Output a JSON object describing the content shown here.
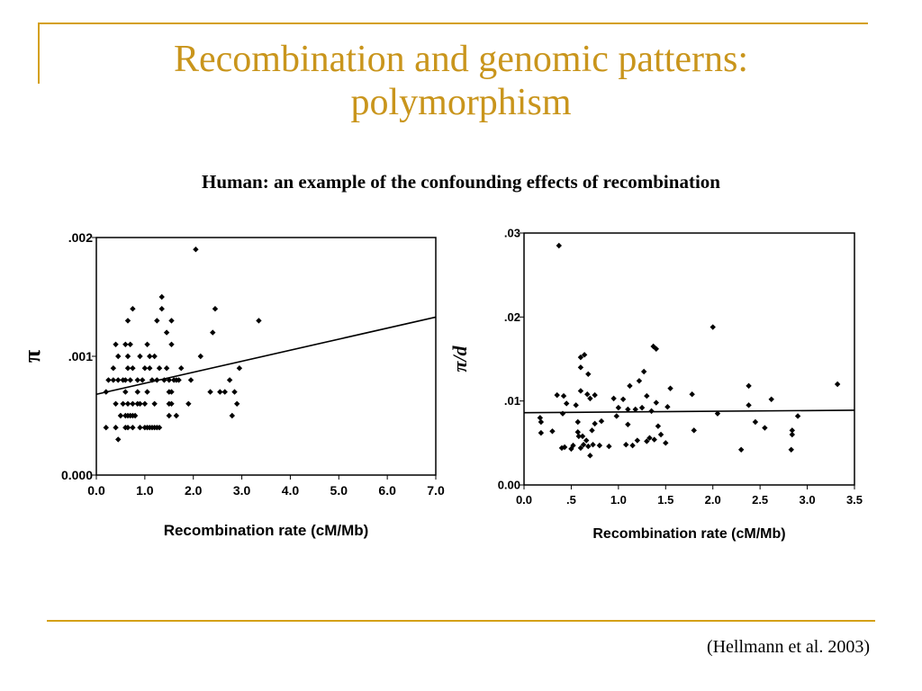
{
  "slide": {
    "title_line1": "Recombination and genomic patterns:",
    "title_line2": "polymorphism",
    "subtitle": "Human: an example of the confounding effects of recombination",
    "citation": "(Hellmann et al. 2003)",
    "accent_color": "#c9951c"
  },
  "chart_data": [
    {
      "type": "scatter",
      "xlabel": "Recombination rate (cM/Mb)",
      "ylabel": "π",
      "xlim": [
        0,
        7
      ],
      "ylim": [
        0,
        0.002
      ],
      "x_ticks": [
        "0.0",
        "1.0",
        "2.0",
        "3.0",
        "4.0",
        "5.0",
        "6.0",
        "7.0"
      ],
      "y_ticks": [
        {
          "value": 0.002,
          "label": ".002"
        },
        {
          "value": 0.001,
          "label": ".001"
        },
        {
          "value": 0,
          "label": "0.000"
        }
      ],
      "trend_line": [
        [
          0,
          0.00068
        ],
        [
          7,
          0.00133
        ]
      ],
      "points": [
        [
          0.2,
          0.0004
        ],
        [
          0.2,
          0.0007
        ],
        [
          0.25,
          0.0008
        ],
        [
          0.35,
          0.0008
        ],
        [
          0.35,
          0.0009
        ],
        [
          0.4,
          0.0004
        ],
        [
          0.4,
          0.0006
        ],
        [
          0.4,
          0.0011
        ],
        [
          0.45,
          0.0003
        ],
        [
          0.45,
          0.0008
        ],
        [
          0.45,
          0.001
        ],
        [
          0.5,
          0.0005
        ],
        [
          0.55,
          0.0006
        ],
        [
          0.55,
          0.0008
        ],
        [
          0.6,
          0.0004
        ],
        [
          0.6,
          0.0005
        ],
        [
          0.6,
          0.0007
        ],
        [
          0.6,
          0.0008
        ],
        [
          0.6,
          0.0011
        ],
        [
          0.65,
          0.0004
        ],
        [
          0.65,
          0.0005
        ],
        [
          0.65,
          0.0006
        ],
        [
          0.65,
          0.0009
        ],
        [
          0.65,
          0.001
        ],
        [
          0.65,
          0.0013
        ],
        [
          0.7,
          0.0005
        ],
        [
          0.7,
          0.0008
        ],
        [
          0.7,
          0.0011
        ],
        [
          0.75,
          0.0004
        ],
        [
          0.75,
          0.0005
        ],
        [
          0.75,
          0.0006
        ],
        [
          0.75,
          0.0009
        ],
        [
          0.75,
          0.0014
        ],
        [
          0.8,
          0.0005
        ],
        [
          0.85,
          0.0006
        ],
        [
          0.85,
          0.0007
        ],
        [
          0.85,
          0.0008
        ],
        [
          0.9,
          0.0004
        ],
        [
          0.9,
          0.0006
        ],
        [
          0.9,
          0.001
        ],
        [
          0.95,
          0.0008
        ],
        [
          1.0,
          0.0004
        ],
        [
          1.0,
          0.0006
        ],
        [
          1.0,
          0.0009
        ],
        [
          1.05,
          0.0004
        ],
        [
          1.05,
          0.0007
        ],
        [
          1.05,
          0.0011
        ],
        [
          1.1,
          0.0004
        ],
        [
          1.1,
          0.0009
        ],
        [
          1.1,
          0.001
        ],
        [
          1.15,
          0.0004
        ],
        [
          1.15,
          0.0008
        ],
        [
          1.2,
          0.0004
        ],
        [
          1.2,
          0.0006
        ],
        [
          1.2,
          0.001
        ],
        [
          1.25,
          0.0004
        ],
        [
          1.25,
          0.0008
        ],
        [
          1.25,
          0.0013
        ],
        [
          1.3,
          0.0004
        ],
        [
          1.3,
          0.0009
        ],
        [
          1.35,
          0.0014
        ],
        [
          1.35,
          0.0015
        ],
        [
          1.4,
          0.0008
        ],
        [
          1.45,
          0.0009
        ],
        [
          1.45,
          0.0012
        ],
        [
          1.5,
          0.0005
        ],
        [
          1.5,
          0.0006
        ],
        [
          1.5,
          0.0007
        ],
        [
          1.5,
          0.0008
        ],
        [
          1.55,
          0.0006
        ],
        [
          1.55,
          0.0007
        ],
        [
          1.55,
          0.0011
        ],
        [
          1.55,
          0.0013
        ],
        [
          1.6,
          0.0008
        ],
        [
          1.65,
          0.0005
        ],
        [
          1.65,
          0.0008
        ],
        [
          1.7,
          0.0008
        ],
        [
          1.75,
          0.0009
        ],
        [
          1.9,
          0.0006
        ],
        [
          1.95,
          0.0008
        ],
        [
          2.05,
          0.0019
        ],
        [
          2.15,
          0.001
        ],
        [
          2.35,
          0.0007
        ],
        [
          2.4,
          0.0012
        ],
        [
          2.45,
          0.0014
        ],
        [
          2.55,
          0.0007
        ],
        [
          2.65,
          0.0007
        ],
        [
          2.75,
          0.0008
        ],
        [
          2.8,
          0.0005
        ],
        [
          2.85,
          0.0007
        ],
        [
          2.9,
          0.0006
        ],
        [
          2.95,
          0.0009
        ],
        [
          3.35,
          0.0013
        ]
      ]
    },
    {
      "type": "scatter",
      "xlabel": "Recombination rate (cM/Mb)",
      "ylabel": "π/d",
      "xlim": [
        0,
        3.5
      ],
      "ylim": [
        0,
        0.03
      ],
      "x_ticks": [
        "0.0",
        ".5",
        "1.0",
        "1.5",
        "2.0",
        "2.5",
        "3.0",
        "3.5"
      ],
      "y_ticks": [
        {
          "value": 0.03,
          "label": ".03"
        },
        {
          "value": 0.02,
          "label": ".02"
        },
        {
          "value": 0.01,
          "label": ".01"
        },
        {
          "value": 0,
          "label": "0.00"
        }
      ],
      "trend_line": [
        [
          0,
          0.0086
        ],
        [
          3.5,
          0.0089
        ]
      ],
      "points": [
        [
          0.17,
          0.008
        ],
        [
          0.18,
          0.0062
        ],
        [
          0.18,
          0.0075
        ],
        [
          0.3,
          0.0064
        ],
        [
          0.35,
          0.0107
        ],
        [
          0.37,
          0.0285
        ],
        [
          0.4,
          0.0044
        ],
        [
          0.41,
          0.0085
        ],
        [
          0.42,
          0.0106
        ],
        [
          0.43,
          0.0045
        ],
        [
          0.45,
          0.0097
        ],
        [
          0.5,
          0.0043
        ],
        [
          0.52,
          0.0047
        ],
        [
          0.55,
          0.0095
        ],
        [
          0.57,
          0.0063
        ],
        [
          0.57,
          0.0075
        ],
        [
          0.58,
          0.0058
        ],
        [
          0.6,
          0.0044
        ],
        [
          0.6,
          0.0112
        ],
        [
          0.6,
          0.014
        ],
        [
          0.6,
          0.0152
        ],
        [
          0.62,
          0.0058
        ],
        [
          0.63,
          0.0048
        ],
        [
          0.64,
          0.0155
        ],
        [
          0.66,
          0.0053
        ],
        [
          0.67,
          0.0108
        ],
        [
          0.68,
          0.0132
        ],
        [
          0.68,
          0.0046
        ],
        [
          0.7,
          0.0035
        ],
        [
          0.7,
          0.0103
        ],
        [
          0.72,
          0.0065
        ],
        [
          0.73,
          0.0048
        ],
        [
          0.75,
          0.0073
        ],
        [
          0.75,
          0.0107
        ],
        [
          0.8,
          0.0047
        ],
        [
          0.82,
          0.0076
        ],
        [
          0.9,
          0.0046
        ],
        [
          0.95,
          0.0103
        ],
        [
          0.98,
          0.0082
        ],
        [
          1.0,
          0.0092
        ],
        [
          1.05,
          0.0102
        ],
        [
          1.08,
          0.0048
        ],
        [
          1.1,
          0.0072
        ],
        [
          1.1,
          0.009
        ],
        [
          1.12,
          0.0118
        ],
        [
          1.15,
          0.0047
        ],
        [
          1.18,
          0.009
        ],
        [
          1.2,
          0.0053
        ],
        [
          1.22,
          0.0124
        ],
        [
          1.25,
          0.0092
        ],
        [
          1.27,
          0.0135
        ],
        [
          1.3,
          0.0052
        ],
        [
          1.3,
          0.0106
        ],
        [
          1.33,
          0.0056
        ],
        [
          1.35,
          0.0088
        ],
        [
          1.37,
          0.0165
        ],
        [
          1.38,
          0.0054
        ],
        [
          1.4,
          0.0162
        ],
        [
          1.4,
          0.0098
        ],
        [
          1.42,
          0.007
        ],
        [
          1.45,
          0.006
        ],
        [
          1.5,
          0.005
        ],
        [
          1.52,
          0.0093
        ],
        [
          1.55,
          0.0115
        ],
        [
          1.78,
          0.0108
        ],
        [
          1.8,
          0.0065
        ],
        [
          2.0,
          0.0188
        ],
        [
          2.05,
          0.0085
        ],
        [
          2.3,
          0.0042
        ],
        [
          2.38,
          0.0095
        ],
        [
          2.38,
          0.0118
        ],
        [
          2.45,
          0.0075
        ],
        [
          2.55,
          0.0068
        ],
        [
          2.62,
          0.0102
        ],
        [
          2.83,
          0.0042
        ],
        [
          2.84,
          0.006
        ],
        [
          2.84,
          0.0065
        ],
        [
          2.9,
          0.0082
        ],
        [
          3.32,
          0.012
        ]
      ]
    }
  ]
}
